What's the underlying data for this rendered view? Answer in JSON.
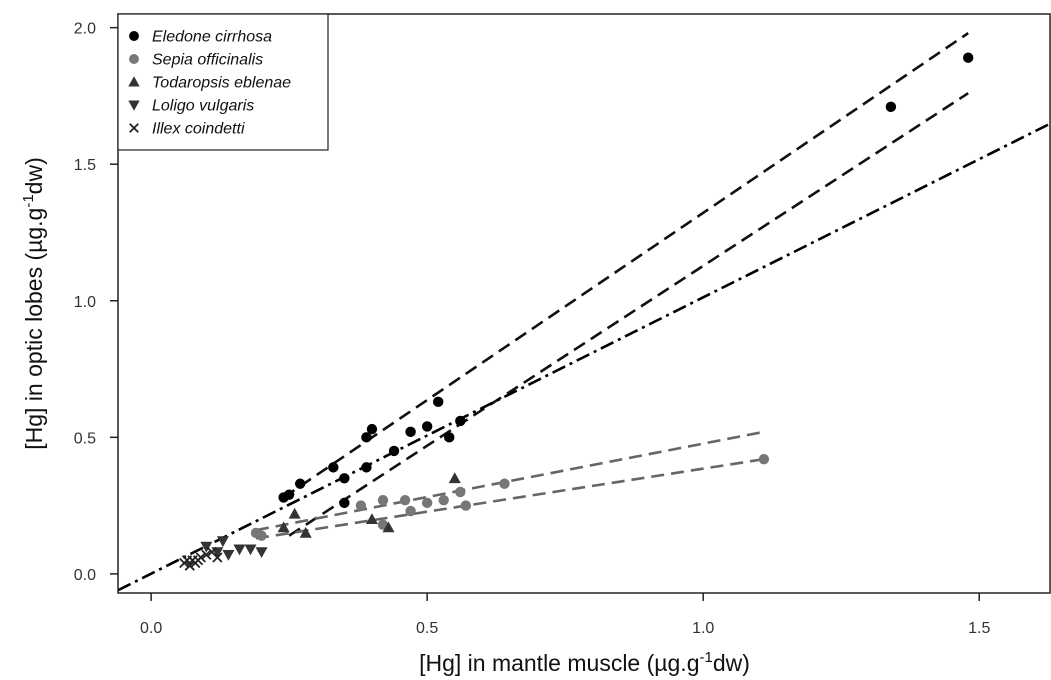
{
  "chart_data": {
    "type": "scatter",
    "xlabel": {
      "pre": "[Hg] in mantle muscle (µg.g",
      "sup": "-1",
      "post": "dw)"
    },
    "ylabel": {
      "pre": "[Hg] in optic lobes (µg.g",
      "sup": "-1",
      "post": "dw)"
    },
    "xlim": [
      -0.06,
      1.63
    ],
    "ylim": [
      -0.07,
      2.05
    ],
    "xticks": [
      {
        "value": 0.0,
        "label": "0.0"
      },
      {
        "value": 0.5,
        "label": "0.5"
      },
      {
        "value": 1.0,
        "label": "1.0"
      },
      {
        "value": 1.5,
        "label": "1.5"
      }
    ],
    "yticks": [
      {
        "value": 0.0,
        "label": "0.0"
      },
      {
        "value": 0.5,
        "label": "0.5"
      },
      {
        "value": 1.0,
        "label": "1.0"
      },
      {
        "value": 1.5,
        "label": "1.5"
      },
      {
        "value": 2.0,
        "label": "2.0"
      }
    ],
    "grid": false,
    "legend_position": "top-left",
    "series": [
      {
        "name": "Eledone cirrhosa",
        "marker": "circle",
        "color": "#000000",
        "points": [
          [
            0.24,
            0.28
          ],
          [
            0.25,
            0.29
          ],
          [
            0.27,
            0.33
          ],
          [
            0.33,
            0.39
          ],
          [
            0.35,
            0.35
          ],
          [
            0.35,
            0.26
          ],
          [
            0.39,
            0.39
          ],
          [
            0.39,
            0.5
          ],
          [
            0.4,
            0.53
          ],
          [
            0.44,
            0.45
          ],
          [
            0.47,
            0.52
          ],
          [
            0.5,
            0.54
          ],
          [
            0.52,
            0.63
          ],
          [
            0.54,
            0.5
          ],
          [
            0.56,
            0.56
          ],
          [
            1.34,
            1.71
          ],
          [
            1.48,
            1.89
          ]
        ]
      },
      {
        "name": "Sepia officinalis",
        "marker": "circle",
        "color": "#777777",
        "points": [
          [
            0.19,
            0.15
          ],
          [
            0.2,
            0.14
          ],
          [
            0.38,
            0.25
          ],
          [
            0.42,
            0.27
          ],
          [
            0.42,
            0.18
          ],
          [
            0.46,
            0.27
          ],
          [
            0.47,
            0.23
          ],
          [
            0.5,
            0.26
          ],
          [
            0.53,
            0.27
          ],
          [
            0.56,
            0.3
          ],
          [
            0.57,
            0.25
          ],
          [
            0.64,
            0.33
          ],
          [
            1.11,
            0.42
          ]
        ]
      },
      {
        "name": "Todaropsis eblenae",
        "marker": "triangle-up",
        "color": "#333333",
        "points": [
          [
            0.24,
            0.17
          ],
          [
            0.26,
            0.22
          ],
          [
            0.28,
            0.15
          ],
          [
            0.4,
            0.2
          ],
          [
            0.43,
            0.17
          ],
          [
            0.55,
            0.35
          ]
        ]
      },
      {
        "name": "Loligo vulgaris",
        "marker": "triangle-down",
        "color": "#333333",
        "points": [
          [
            0.1,
            0.1
          ],
          [
            0.12,
            0.08
          ],
          [
            0.14,
            0.07
          ],
          [
            0.16,
            0.09
          ],
          [
            0.18,
            0.09
          ],
          [
            0.2,
            0.08
          ],
          [
            0.13,
            0.12
          ]
        ]
      },
      {
        "name": "Illex coindetti",
        "marker": "cross",
        "color": "#222222",
        "points": [
          [
            0.06,
            0.04
          ],
          [
            0.065,
            0.05
          ],
          [
            0.07,
            0.03
          ],
          [
            0.075,
            0.05
          ],
          [
            0.08,
            0.04
          ],
          [
            0.085,
            0.05
          ],
          [
            0.09,
            0.06
          ],
          [
            0.1,
            0.07
          ],
          [
            0.11,
            0.08
          ],
          [
            0.12,
            0.06
          ]
        ]
      }
    ],
    "lines": [
      {
        "style": "dashed",
        "color": "#111111",
        "from": [
          0.24,
          0.28
        ],
        "to": [
          1.48,
          1.98
        ]
      },
      {
        "style": "dashed",
        "color": "#111111",
        "from": [
          0.25,
          0.14
        ],
        "to": [
          1.48,
          1.76
        ]
      },
      {
        "style": "dashdot",
        "color": "#000000",
        "from": [
          -0.06,
          -0.06
        ],
        "to": [
          1.63,
          1.65
        ]
      },
      {
        "style": "dashed",
        "color": "#666666",
        "from": [
          0.19,
          0.16
        ],
        "to": [
          1.11,
          0.52
        ]
      },
      {
        "style": "dashed",
        "color": "#666666",
        "from": [
          0.19,
          0.13
        ],
        "to": [
          1.11,
          0.42
        ]
      }
    ]
  }
}
